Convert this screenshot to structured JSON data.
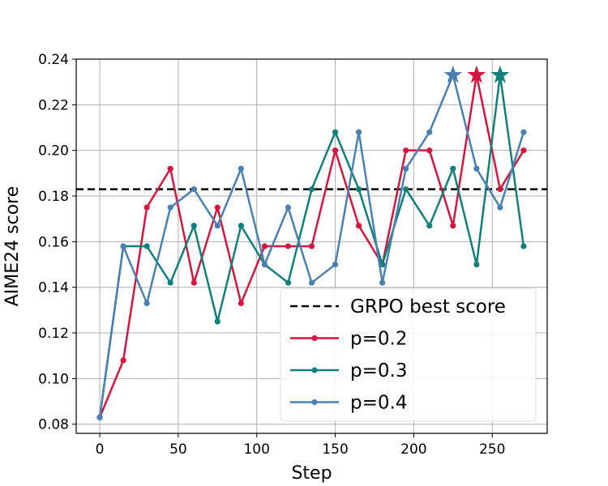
{
  "chart_data": {
    "type": "line",
    "title": "",
    "xlabel": "Step",
    "ylabel": "AIME24 score",
    "xlim": [
      -15,
      285
    ],
    "ylim": [
      0.076,
      0.24
    ],
    "xticks": [
      0,
      50,
      100,
      150,
      200,
      250
    ],
    "xtick_labels": [
      "0",
      "50",
      "100",
      "150",
      "200",
      "250"
    ],
    "yticks": [
      0.08,
      0.1,
      0.12,
      0.14,
      0.16,
      0.18,
      0.2,
      0.22,
      0.24
    ],
    "ytick_labels": [
      "0.08",
      "0.10",
      "0.12",
      "0.14",
      "0.16",
      "0.18",
      "0.20",
      "0.22",
      "0.24"
    ],
    "grid": true,
    "legend_position": "lower-right",
    "x": [
      0,
      15,
      30,
      45,
      60,
      75,
      90,
      105,
      120,
      135,
      150,
      165,
      180,
      195,
      210,
      225,
      240,
      255,
      270
    ],
    "reference_line": {
      "name": "GRPO best score",
      "value": 0.183,
      "color": "#000000",
      "style": "dashed"
    },
    "series": [
      {
        "name": "p=0.2",
        "color": "#d6163f",
        "values": [
          0.083,
          0.108,
          0.175,
          0.192,
          0.142,
          0.175,
          0.133,
          0.158,
          0.158,
          0.158,
          0.2,
          0.167,
          0.15,
          0.2,
          0.2,
          0.167,
          0.233,
          0.183,
          0.2
        ],
        "best": {
          "x": 240,
          "y": 0.233
        }
      },
      {
        "name": "p=0.3",
        "color": "#11807a",
        "values": [
          0.083,
          0.158,
          0.158,
          0.142,
          0.167,
          0.125,
          0.167,
          0.15,
          0.142,
          0.183,
          0.208,
          0.183,
          0.15,
          0.183,
          0.167,
          0.192,
          0.15,
          0.233,
          0.158
        ],
        "best": {
          "x": 255,
          "y": 0.233
        }
      },
      {
        "name": "p=0.4",
        "color": "#4a80b2",
        "values": [
          0.083,
          0.158,
          0.133,
          0.175,
          0.183,
          0.167,
          0.192,
          0.15,
          0.175,
          0.142,
          0.15,
          0.208,
          0.142,
          0.192,
          0.208,
          0.233,
          0.192,
          0.175,
          0.208
        ],
        "best": {
          "x": 225,
          "y": 0.233
        }
      }
    ]
  }
}
